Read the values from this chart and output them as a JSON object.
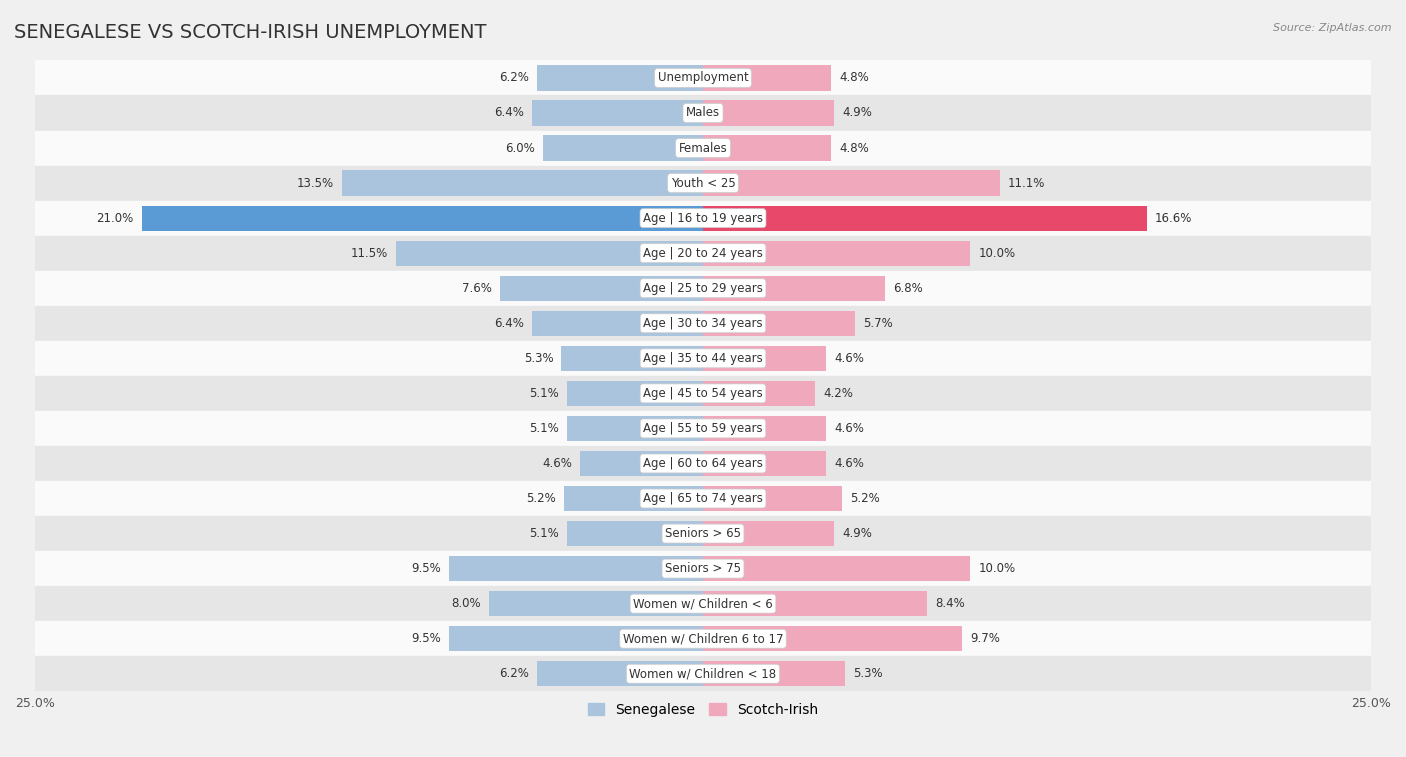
{
  "title": "SENEGALESE VS SCOTCH-IRISH UNEMPLOYMENT",
  "source": "Source: ZipAtlas.com",
  "categories": [
    "Unemployment",
    "Males",
    "Females",
    "Youth < 25",
    "Age | 16 to 19 years",
    "Age | 20 to 24 years",
    "Age | 25 to 29 years",
    "Age | 30 to 34 years",
    "Age | 35 to 44 years",
    "Age | 45 to 54 years",
    "Age | 55 to 59 years",
    "Age | 60 to 64 years",
    "Age | 65 to 74 years",
    "Seniors > 65",
    "Seniors > 75",
    "Women w/ Children < 6",
    "Women w/ Children 6 to 17",
    "Women w/ Children < 18"
  ],
  "senegalese": [
    6.2,
    6.4,
    6.0,
    13.5,
    21.0,
    11.5,
    7.6,
    6.4,
    5.3,
    5.1,
    5.1,
    4.6,
    5.2,
    5.1,
    9.5,
    8.0,
    9.5,
    6.2
  ],
  "scotch_irish": [
    4.8,
    4.9,
    4.8,
    11.1,
    16.6,
    10.0,
    6.8,
    5.7,
    4.6,
    4.2,
    4.6,
    4.6,
    5.2,
    4.9,
    10.0,
    8.4,
    9.7,
    5.3
  ],
  "senegalese_color": "#aac4de",
  "scotch_irish_color": "#f0a8bc",
  "senegalese_highlight_color": "#5b9bd5",
  "scotch_irish_highlight_color": "#e8496a",
  "highlight_row": 4,
  "bg_color": "#f0f0f0",
  "row_bg_light": "#fafafa",
  "row_bg_dark": "#e6e6e6",
  "x_max": 25.0,
  "bar_height": 0.72,
  "title_fontsize": 14,
  "label_fontsize": 8.5,
  "value_fontsize": 8.5,
  "legend_fontsize": 10
}
